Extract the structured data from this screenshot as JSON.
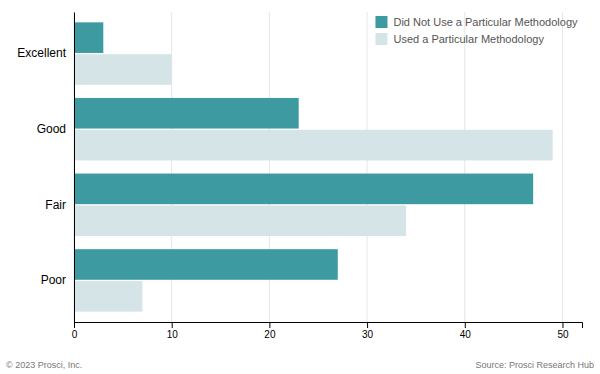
{
  "chart_data": {
    "type": "bar",
    "orientation": "horizontal",
    "categories": [
      "Poor",
      "Fair",
      "Good",
      "Excellent"
    ],
    "series": [
      {
        "name": "Did Not Use a Particular Methodology",
        "color": "#3d9aa1",
        "values": [
          27,
          47,
          23,
          3
        ]
      },
      {
        "name": "Used a Particular Methodology",
        "color": "#d5e5e7",
        "values": [
          7,
          34,
          49,
          10
        ]
      }
    ],
    "xlim": [
      0,
      52
    ],
    "xticks": [
      0,
      10,
      20,
      30,
      40,
      50
    ],
    "grid": true,
    "legend": "upper right",
    "annotations": [
      "© 2023 Prosci, Inc.",
      "Source: Prosci Research Hub"
    ]
  }
}
